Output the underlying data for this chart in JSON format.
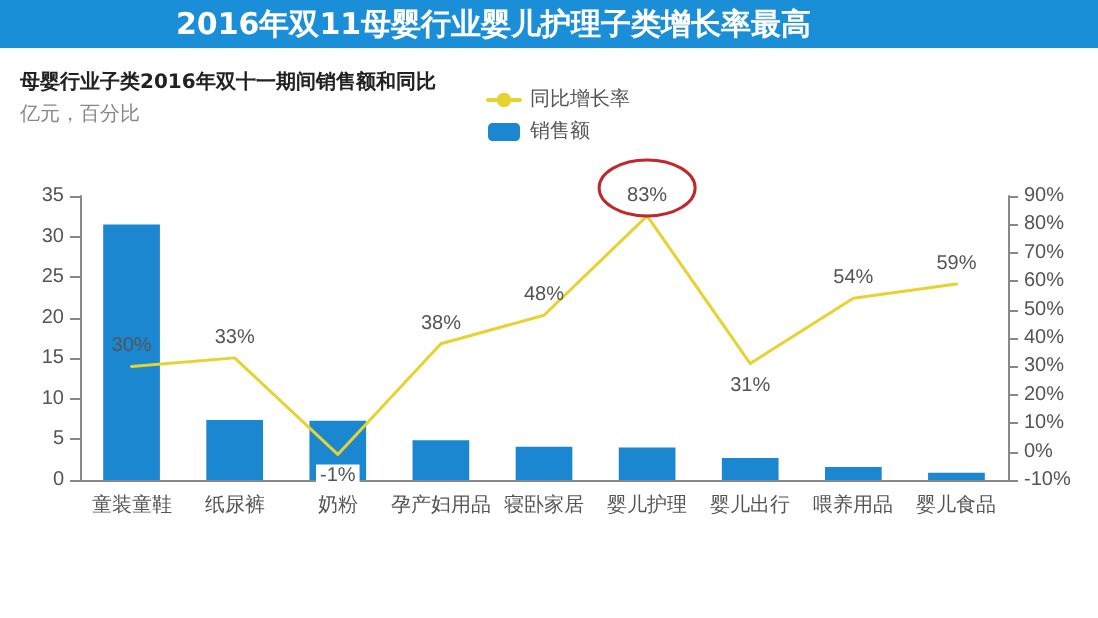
{
  "chart_data": {
    "type": "bar",
    "title": "2016年双11母婴行业婴儿护理子类增长率最高",
    "subtitle": "母婴行业子类2016年双十一期间销售额和同比",
    "annotations": [
      "亿元，百分比"
    ],
    "categories": [
      "童装童鞋",
      "纸尿裤",
      "奶粉",
      "孕产妇用品",
      "寝卧家居",
      "婴儿护理",
      "婴儿出行",
      "喂养用品",
      "婴儿食品"
    ],
    "series": [
      {
        "name": "同比增长率",
        "type": "line",
        "axis": "y2",
        "color": "#e8d230",
        "values": [
          30,
          33,
          -1,
          38,
          48,
          83,
          31,
          54,
          59
        ],
        "value_labels": [
          "30%",
          "33%",
          "-1%",
          "38%",
          "48%",
          "83%",
          "31%",
          "54%",
          "59%"
        ]
      },
      {
        "name": "销售额",
        "color": "#1a87d0",
        "values": [
          31.5,
          7.4,
          7.3,
          4.9,
          4.1,
          4.0,
          2.7,
          1.6,
          0.9
        ]
      }
    ],
    "ylim": [
      0,
      35
    ],
    "yticks": [
      0,
      5,
      10,
      15,
      20,
      25,
      30,
      35
    ],
    "y2lim": [
      -10,
      90
    ],
    "y2ticks": [
      {
        "value": -10,
        "label": "-10%"
      },
      {
        "value": 0,
        "label": "0%"
      },
      {
        "value": 10,
        "label": "10%"
      },
      {
        "value": 20,
        "label": "20%"
      },
      {
        "value": 30,
        "label": "30%"
      },
      {
        "value": 40,
        "label": "40%"
      },
      {
        "value": 50,
        "label": "50%"
      },
      {
        "value": 60,
        "label": "60%"
      },
      {
        "value": 70,
        "label": "70%"
      },
      {
        "value": 80,
        "label": "80%"
      },
      {
        "value": 90,
        "label": "90%"
      }
    ],
    "grid": false,
    "legend": "top",
    "marker": "none",
    "line_style": "solid"
  }
}
